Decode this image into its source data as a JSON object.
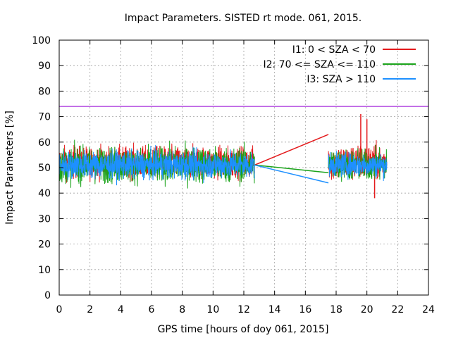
{
  "chart_data": {
    "type": "line",
    "title": "Impact Parameters. SISTED rt mode. 061, 2015.",
    "xlabel": "GPS time [hours of doy 061, 2015]",
    "ylabel": "Impact Parameters [%]",
    "xlim": [
      0,
      24
    ],
    "ylim": [
      0,
      100
    ],
    "xticks": [
      0,
      2,
      4,
      6,
      8,
      10,
      12,
      14,
      16,
      18,
      20,
      22,
      24
    ],
    "yticks": [
      0,
      10,
      20,
      30,
      40,
      50,
      60,
      70,
      80,
      90,
      100
    ],
    "grid": true,
    "legend_position": "top-right",
    "threshold": {
      "value": 74,
      "color": "#9400d3"
    },
    "series": [
      {
        "name": "I1: 0 < SZA < 70",
        "color": "#e41a1c",
        "segments": [
          {
            "x_start": 0.0,
            "x_end": 12.7,
            "mean": 52,
            "amplitude": 8
          },
          {
            "x_start": 17.5,
            "x_end": 21.3,
            "mean": 52,
            "amplitude": 9
          }
        ],
        "gap_line": [
          [
            12.7,
            51
          ],
          [
            17.5,
            63
          ]
        ],
        "notes": [
          [
            19.6,
            71
          ],
          [
            20.0,
            69
          ],
          [
            20.5,
            38
          ]
        ]
      },
      {
        "name": "I2: 70 <= SZA <= 110",
        "color": "#1aa31a",
        "segments": [
          {
            "x_start": 0.0,
            "x_end": 12.7,
            "mean": 51,
            "amplitude": 9
          },
          {
            "x_start": 17.5,
            "x_end": 21.3,
            "mean": 51,
            "amplitude": 8
          }
        ],
        "gap_line": [
          [
            12.7,
            51
          ],
          [
            17.5,
            48
          ]
        ]
      },
      {
        "name": "I3: SZA > 110",
        "color": "#1e90ff",
        "segments": [
          {
            "x_start": 0.0,
            "x_end": 12.7,
            "mean": 51,
            "amplitude": 7
          },
          {
            "x_start": 17.5,
            "x_end": 21.3,
            "mean": 51,
            "amplitude": 6
          }
        ],
        "gap_line": [
          [
            12.7,
            51
          ],
          [
            17.5,
            44
          ]
        ]
      }
    ]
  }
}
